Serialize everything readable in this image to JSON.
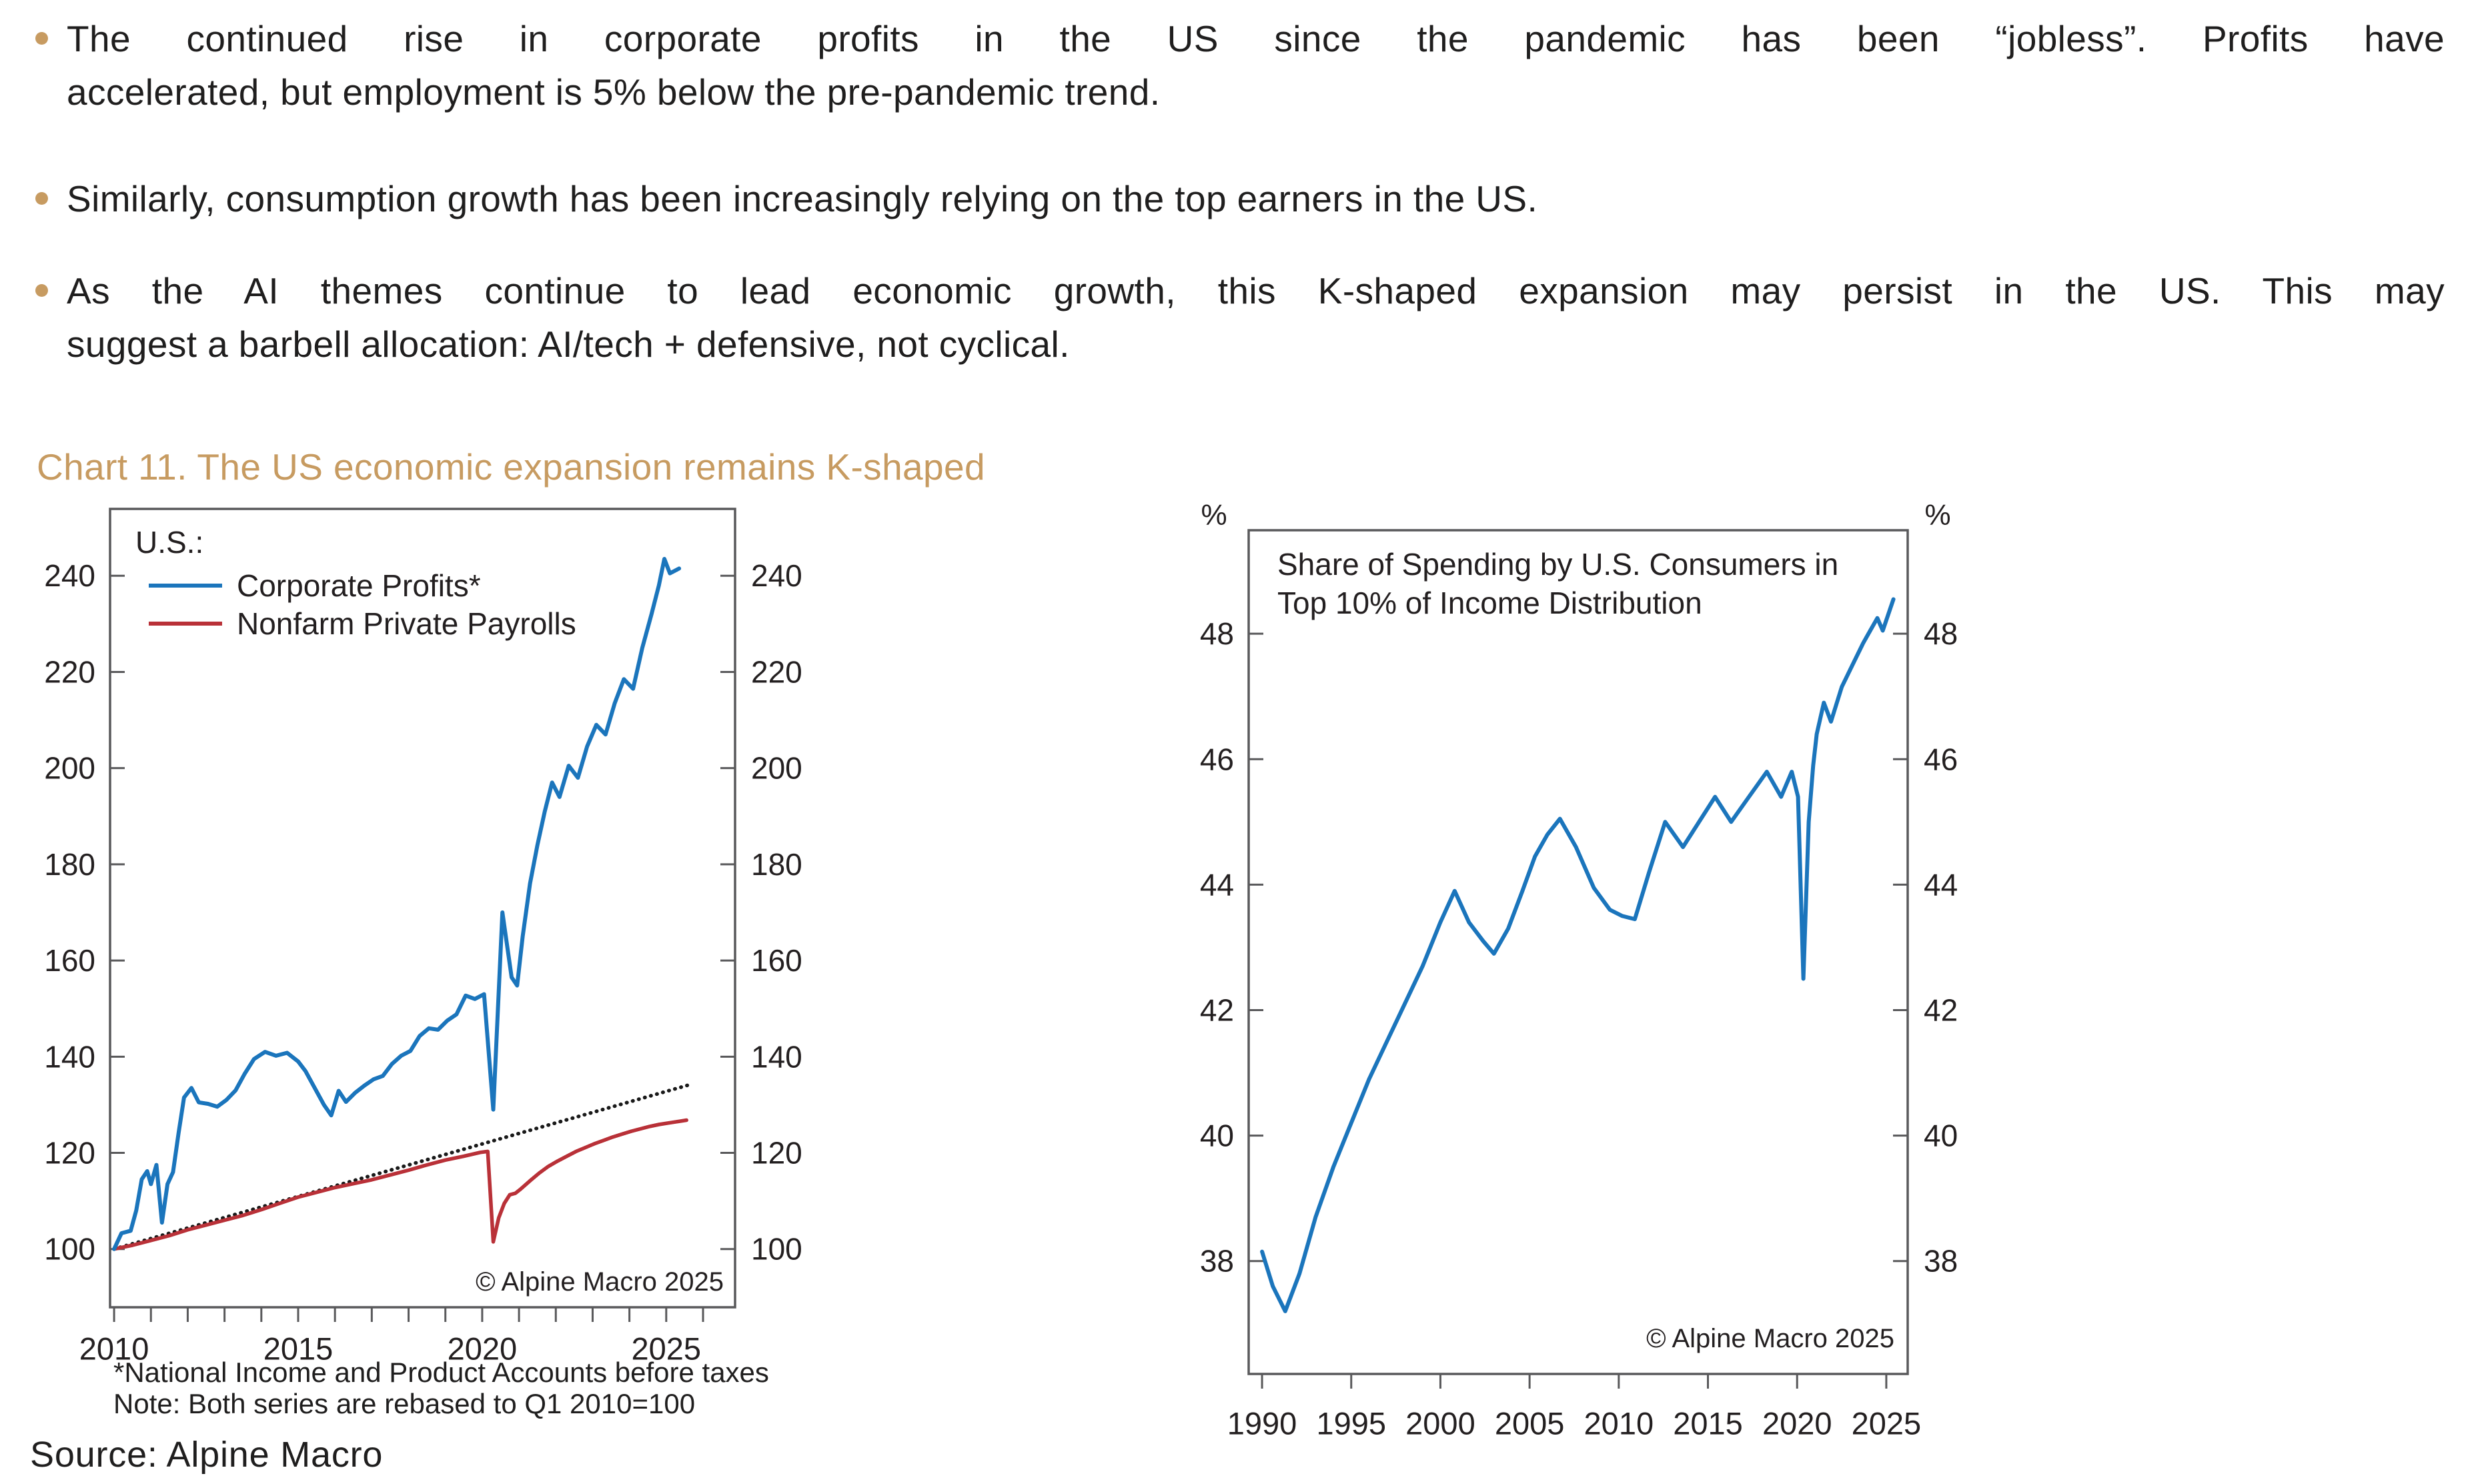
{
  "page": {
    "source_line": "Source: Alpine Macro"
  },
  "bullets": [
    {
      "lines": [
        "The continued rise in corporate profits in the US since the pandemic has been “jobless”. Profits have",
        "accelerated, but employment is 5% below the pre-pandemic trend."
      ]
    },
    {
      "lines": [
        "Similarly, consumption growth has been increasingly relying on the top earners in the US."
      ]
    },
    {
      "lines": [
        "As the AI themes continue to lead economic growth, this K-shaped expansion may persist in the US. This may",
        "suggest a barbell allocation: AI/tech + defensive, not cyclical."
      ]
    }
  ],
  "heading": "Chart 11. The US economic expansion remains K-shaped",
  "colors": {
    "accent_tan": "#C79B61",
    "series_blue": "#1B75BC",
    "series_red": "#B93138",
    "trend_black": "#1A1A1A",
    "axis_gray": "#59595B",
    "text_dark": "#1F1E1E"
  },
  "chart_data": [
    {
      "type": "line",
      "name": "US Corporate Profits vs Nonfarm Private Payrolls",
      "legend_title": "U.S.:",
      "legend": [
        {
          "label": "Corporate Profits*",
          "color": "#1B75BC"
        },
        {
          "label": "Nonfarm Private Payrolls",
          "color": "#B93138"
        }
      ],
      "xlim": [
        2009.89,
        2026.87
      ],
      "ylim": [
        87.9,
        253.9
      ],
      "y_ticks": [
        100,
        120,
        140,
        160,
        180,
        200,
        220,
        240
      ],
      "x_ticks": [
        2010,
        2015,
        2020,
        2025
      ],
      "x_ticks_minor": [
        2010,
        2011,
        2012,
        2013,
        2014,
        2015,
        2016,
        2017,
        2018,
        2019,
        2020,
        2021,
        2022,
        2023,
        2024,
        2025,
        2026
      ],
      "copyright": "© Alpine Macro 2025",
      "footnotes": [
        "*National Income and Product Accounts before taxes",
        "Note: Both series are rebased to Q1 2010=100"
      ],
      "series": [
        {
          "name": "dotted-trend-line",
          "color": "#1A1A1A",
          "width": 5.5,
          "dash": "0.6 8.8",
          "points": [
            [
              2010.0,
              100
            ],
            [
              2025.65,
              134.2
            ]
          ]
        },
        {
          "name": "Nonfarm Private Payrolls",
          "color": "#B93138",
          "width": 5.5,
          "points": [
            [
              2010.0,
              100
            ],
            [
              2010.5,
              100.8
            ],
            [
              2011.0,
              101.8
            ],
            [
              2011.5,
              102.8
            ],
            [
              2012.0,
              104
            ],
            [
              2012.5,
              105
            ],
            [
              2013.0,
              106
            ],
            [
              2013.5,
              107
            ],
            [
              2014.0,
              108.2
            ],
            [
              2014.5,
              109.5
            ],
            [
              2015.0,
              110.8
            ],
            [
              2015.5,
              111.8
            ],
            [
              2016.0,
              112.8
            ],
            [
              2016.5,
              113.6
            ],
            [
              2017.0,
              114.4
            ],
            [
              2017.5,
              115.4
            ],
            [
              2018.0,
              116.4
            ],
            [
              2018.5,
              117.5
            ],
            [
              2019.0,
              118.5
            ],
            [
              2019.5,
              119.3
            ],
            [
              2019.95,
              120.1
            ],
            [
              2020.15,
              120.3
            ],
            [
              2020.3,
              101.5
            ],
            [
              2020.45,
              106.5
            ],
            [
              2020.6,
              109.5
            ],
            [
              2020.75,
              111.3
            ],
            [
              2020.9,
              111.6
            ],
            [
              2021.05,
              112.5
            ],
            [
              2021.3,
              114.2
            ],
            [
              2021.55,
              115.8
            ],
            [
              2021.8,
              117.2
            ],
            [
              2022.05,
              118.3
            ],
            [
              2022.3,
              119.3
            ],
            [
              2022.55,
              120.3
            ],
            [
              2022.8,
              121.1
            ],
            [
              2023.05,
              121.9
            ],
            [
              2023.3,
              122.6
            ],
            [
              2023.55,
              123.3
            ],
            [
              2023.8,
              123.9
            ],
            [
              2024.05,
              124.5
            ],
            [
              2024.3,
              125
            ],
            [
              2024.55,
              125.5
            ],
            [
              2024.8,
              125.9
            ],
            [
              2025.05,
              126.2
            ],
            [
              2025.3,
              126.5
            ],
            [
              2025.55,
              126.8
            ]
          ]
        },
        {
          "name": "Corporate Profits*",
          "color": "#1B75BC",
          "width": 6,
          "points": [
            [
              2010.0,
              100
            ],
            [
              2010.2,
              103.3
            ],
            [
              2010.45,
              103.8
            ],
            [
              2010.6,
              108
            ],
            [
              2010.75,
              114.5
            ],
            [
              2010.9,
              116.2
            ],
            [
              2011.0,
              113.5
            ],
            [
              2011.15,
              117.5
            ],
            [
              2011.3,
              105.5
            ],
            [
              2011.45,
              113.5
            ],
            [
              2011.6,
              116
            ],
            [
              2011.75,
              124
            ],
            [
              2011.9,
              131.5
            ],
            [
              2012.1,
              133.5
            ],
            [
              2012.3,
              130.5
            ],
            [
              2012.55,
              130.2
            ],
            [
              2012.8,
              129.6
            ],
            [
              2013.05,
              131
            ],
            [
              2013.3,
              133
            ],
            [
              2013.55,
              136.5
            ],
            [
              2013.8,
              139.5
            ],
            [
              2014.1,
              141
            ],
            [
              2014.4,
              140.2
            ],
            [
              2014.7,
              140.8
            ],
            [
              2015.0,
              139
            ],
            [
              2015.2,
              137
            ],
            [
              2015.45,
              133.5
            ],
            [
              2015.7,
              130
            ],
            [
              2015.9,
              127.8
            ],
            [
              2016.1,
              132.9
            ],
            [
              2016.3,
              130.6
            ],
            [
              2016.55,
              132.5
            ],
            [
              2016.8,
              134
            ],
            [
              2017.05,
              135.3
            ],
            [
              2017.3,
              136
            ],
            [
              2017.55,
              138.5
            ],
            [
              2017.8,
              140.2
            ],
            [
              2018.05,
              141.2
            ],
            [
              2018.3,
              144.3
            ],
            [
              2018.55,
              145.9
            ],
            [
              2018.8,
              145.6
            ],
            [
              2019.05,
              147.5
            ],
            [
              2019.3,
              148.8
            ],
            [
              2019.55,
              152.7
            ],
            [
              2019.8,
              152
            ],
            [
              2020.05,
              153
            ],
            [
              2020.3,
              129
            ],
            [
              2020.55,
              170
            ],
            [
              2020.8,
              156.5
            ],
            [
              2020.95,
              154.8
            ],
            [
              2021.1,
              165
            ],
            [
              2021.3,
              176
            ],
            [
              2021.5,
              184
            ],
            [
              2021.7,
              191
            ],
            [
              2021.9,
              197
            ],
            [
              2022.1,
              194
            ],
            [
              2022.35,
              200.5
            ],
            [
              2022.6,
              198
            ],
            [
              2022.85,
              204.5
            ],
            [
              2023.1,
              209
            ],
            [
              2023.35,
              207
            ],
            [
              2023.6,
              213.5
            ],
            [
              2023.85,
              218.5
            ],
            [
              2024.1,
              216.5
            ],
            [
              2024.35,
              225
            ],
            [
              2024.6,
              232
            ],
            [
              2024.8,
              238
            ],
            [
              2024.95,
              243.5
            ],
            [
              2025.1,
              240.5
            ],
            [
              2025.35,
              241.5
            ]
          ]
        }
      ]
    },
    {
      "type": "line",
      "name": "Share of Spending by US Consumers in Top 10% of Income Distribution",
      "title_lines": [
        "Share of Spending by U.S. Consumers in",
        "Top 10% of Income Distribution"
      ],
      "unit_label": "%",
      "xlim": [
        1989.25,
        2026.2
      ],
      "ylim": [
        36.2,
        49.65
      ],
      "y_ticks": [
        38,
        40,
        42,
        44,
        46,
        48
      ],
      "x_ticks": [
        1990,
        1995,
        2000,
        2005,
        2010,
        2015,
        2020,
        2025
      ],
      "copyright": "© Alpine Macro 2025",
      "series": [
        {
          "name": "Top 10% spending share",
          "color": "#1B75BC",
          "width": 6,
          "points": [
            [
              1990.0,
              38.15
            ],
            [
              1990.6,
              37.6
            ],
            [
              1991.3,
              37.2
            ],
            [
              1992.1,
              37.8
            ],
            [
              1993.0,
              38.7
            ],
            [
              1994.0,
              39.5
            ],
            [
              1995.0,
              40.2
            ],
            [
              1996.0,
              40.9
            ],
            [
              1997.0,
              41.5
            ],
            [
              1998.0,
              42.1
            ],
            [
              1999.0,
              42.7
            ],
            [
              2000.0,
              43.4
            ],
            [
              2000.8,
              43.9
            ],
            [
              2001.6,
              43.4
            ],
            [
              2002.4,
              43.1
            ],
            [
              2003.0,
              42.9
            ],
            [
              2003.8,
              43.3
            ],
            [
              2004.6,
              43.9
            ],
            [
              2005.3,
              44.45
            ],
            [
              2006.0,
              44.8
            ],
            [
              2006.7,
              45.05
            ],
            [
              2007.6,
              44.6
            ],
            [
              2008.6,
              43.95
            ],
            [
              2009.5,
              43.6
            ],
            [
              2010.2,
              43.5
            ],
            [
              2010.9,
              43.45
            ],
            [
              2011.7,
              44.2
            ],
            [
              2012.6,
              45.0
            ],
            [
              2013.6,
              44.6
            ],
            [
              2014.5,
              45.0
            ],
            [
              2015.4,
              45.4
            ],
            [
              2016.3,
              45.0
            ],
            [
              2017.3,
              45.4
            ],
            [
              2018.3,
              45.8
            ],
            [
              2019.1,
              45.4
            ],
            [
              2019.7,
              45.8
            ],
            [
              2020.05,
              45.4
            ],
            [
              2020.35,
              42.5
            ],
            [
              2020.65,
              45.0
            ],
            [
              2020.9,
              45.9
            ],
            [
              2021.1,
              46.4
            ],
            [
              2021.5,
              46.9
            ],
            [
              2021.9,
              46.6
            ],
            [
              2022.5,
              47.15
            ],
            [
              2023.1,
              47.5
            ],
            [
              2023.7,
              47.85
            ],
            [
              2024.1,
              48.05
            ],
            [
              2024.5,
              48.25
            ],
            [
              2024.8,
              48.05
            ],
            [
              2025.1,
              48.3
            ],
            [
              2025.4,
              48.55
            ]
          ]
        }
      ]
    }
  ]
}
